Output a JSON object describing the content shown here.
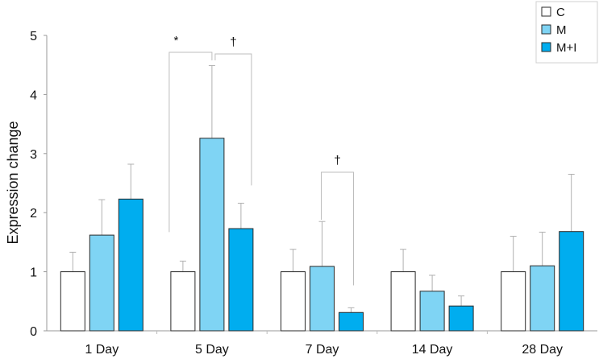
{
  "chart_data": {
    "type": "bar",
    "title": "",
    "xlabel": "",
    "ylabel": "Expression change",
    "ylim": [
      0,
      5
    ],
    "yticks": [
      0,
      1,
      2,
      3,
      4,
      5
    ],
    "categories": [
      "1 Day",
      "5 Day",
      "7 Day",
      "14 Day",
      "28 Day"
    ],
    "series": [
      {
        "name": "C",
        "color": "#ffffff",
        "values": [
          1.0,
          1.0,
          1.0,
          1.0,
          1.0
        ],
        "errors": [
          0.33,
          0.18,
          0.38,
          0.38,
          0.6
        ]
      },
      {
        "name": "M",
        "color": "#7fd4f4",
        "values": [
          1.62,
          3.26,
          1.09,
          0.67,
          1.1
        ],
        "errors": [
          0.6,
          1.23,
          0.76,
          0.27,
          0.57
        ]
      },
      {
        "name": "M+I",
        "color": "#00adef",
        "values": [
          2.23,
          1.73,
          0.31,
          0.42,
          1.68
        ],
        "errors": [
          0.59,
          0.43,
          0.08,
          0.17,
          0.97
        ]
      }
    ],
    "legend_position": "top-right",
    "significance": [
      {
        "label": "*",
        "category": 1,
        "from_series": 0,
        "to_series": 1
      },
      {
        "label": "†",
        "category": 1,
        "from_series": 1,
        "to_series": 2
      },
      {
        "label": "†",
        "category": 2,
        "from_series": 1,
        "to_series": 2
      }
    ]
  }
}
